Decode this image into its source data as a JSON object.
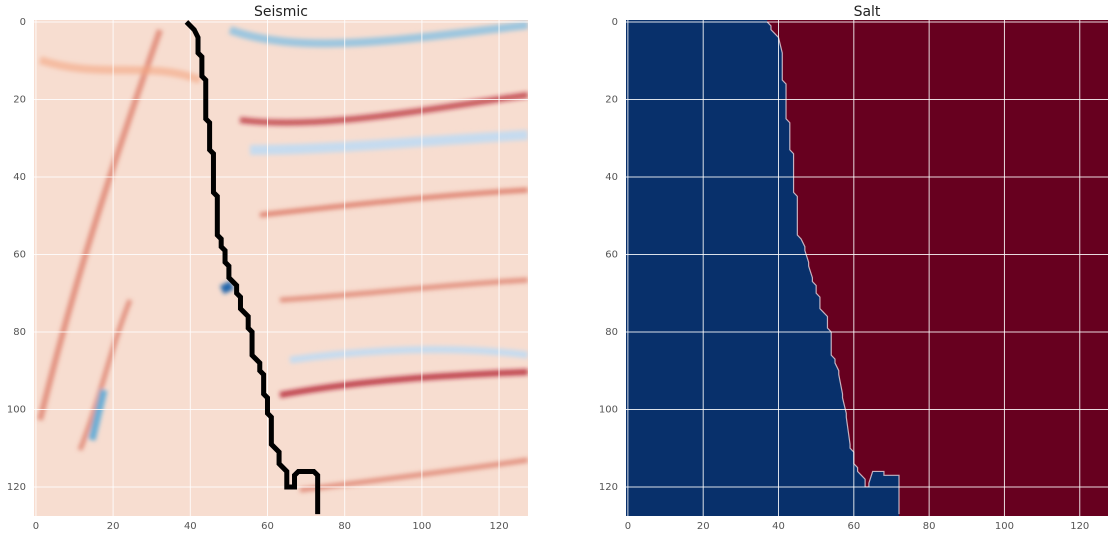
{
  "chart_data": [
    {
      "type": "image",
      "title": "Seismic",
      "xlim": [
        -0.5,
        127.5
      ],
      "ylim": [
        127.5,
        -0.5
      ],
      "xticks": [
        0,
        20,
        40,
        60,
        80,
        100,
        120
      ],
      "yticks": [
        0,
        20,
        40,
        60,
        80,
        100,
        120
      ],
      "grid": true,
      "line_color": "#000000",
      "x": [
        39,
        41,
        42,
        42,
        43,
        43,
        44,
        44,
        45,
        45,
        46,
        46,
        47,
        47,
        48,
        48,
        49,
        49,
        50,
        50,
        51,
        52,
        52,
        53,
        53,
        54,
        55,
        55,
        56,
        56,
        57,
        58,
        58,
        59,
        59,
        60,
        60,
        61,
        61,
        62,
        63,
        63,
        64,
        65,
        65,
        67,
        67,
        68,
        72,
        73,
        73
      ],
      "y": [
        0,
        2,
        4,
        8,
        9,
        14,
        15,
        25,
        26,
        33,
        34,
        44,
        45,
        55,
        56,
        58,
        59,
        62,
        63,
        66,
        67,
        68,
        70,
        71,
        74,
        75,
        76,
        79,
        80,
        86,
        87,
        88,
        90,
        91,
        96,
        97,
        101,
        102,
        109,
        110,
        111,
        114,
        115,
        116,
        120,
        120,
        117,
        116,
        116,
        117,
        127
      ]
    },
    {
      "type": "mask",
      "title": "Salt",
      "xlim": [
        -0.5,
        127.5
      ],
      "ylim": [
        127.5,
        -0.5
      ],
      "xticks": [
        0,
        20,
        40,
        60,
        80,
        100,
        120
      ],
      "yticks": [
        0,
        20,
        40,
        60,
        80,
        100,
        120
      ],
      "grid": true,
      "colors": [
        "#08306b",
        "#67001f"
      ],
      "x": [
        37,
        38,
        38,
        39,
        40,
        41,
        41,
        42,
        42,
        43,
        43,
        44,
        44,
        45,
        45,
        46,
        47,
        47,
        48,
        48,
        49,
        49,
        50,
        50,
        51,
        51,
        52,
        53,
        53,
        54,
        54,
        55,
        55,
        56,
        56,
        57,
        57,
        58,
        58,
        59,
        59,
        60,
        60,
        61,
        61,
        62,
        63,
        63,
        64,
        64,
        65,
        68,
        68,
        72,
        72
      ],
      "y": [
        0,
        1,
        2,
        3,
        4,
        8,
        15,
        16,
        25,
        26,
        33,
        34,
        44,
        45,
        55,
        56,
        58,
        59,
        62,
        63,
        66,
        67,
        68,
        70,
        71,
        74,
        75,
        76,
        79,
        80,
        86,
        87,
        88,
        90,
        91,
        96,
        97,
        101,
        102,
        109,
        110,
        111,
        114,
        115,
        116,
        117,
        118,
        120,
        120,
        119,
        116,
        116,
        117,
        117,
        127
      ]
    }
  ]
}
